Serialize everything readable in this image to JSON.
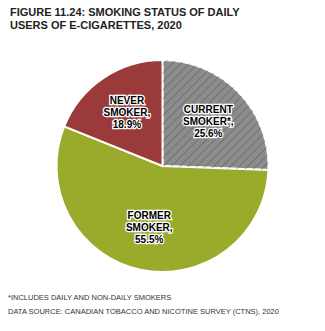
{
  "chart_data": {
    "type": "pie",
    "title": "FIGURE 11.24: SMOKING STATUS OF DAILY\nUSERS OF E-CIGARETTES, 2020",
    "categories": [
      "CURRENT SMOKER*,",
      "FORMER SMOKER,",
      "NEVER SMOKER,"
    ],
    "values": [
      25.6,
      55.5,
      18.9
    ],
    "value_labels": [
      "25.6%",
      "55.5%",
      "18.9%"
    ],
    "data_labels": true,
    "colors": [
      "#8c8c8c",
      "#9aab2b",
      "#9b3a3a"
    ],
    "annotations": [
      "*INCLUDES DAILY AND NON-DAILY SMOKERS",
      "DATA SOURCE: CANADIAN TOBACCO AND NICOTINE SURVEY (CTNS), 2020"
    ]
  }
}
